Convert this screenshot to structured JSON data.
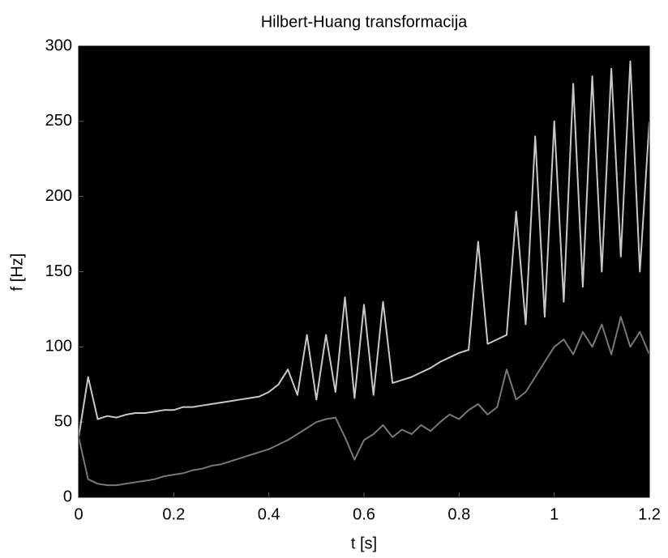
{
  "chart_data": {
    "type": "line",
    "title": "Hilbert-Huang transformacija",
    "x_label": "t [s]",
    "y_label": "f [Hz]",
    "x": [
      0,
      0.02,
      0.04,
      0.06,
      0.08,
      0.1,
      0.12,
      0.14,
      0.16,
      0.18,
      0.2,
      0.22,
      0.24,
      0.26,
      0.28,
      0.3,
      0.32,
      0.34,
      0.36,
      0.38,
      0.4,
      0.42,
      0.44,
      0.46,
      0.48,
      0.5,
      0.52,
      0.54,
      0.56,
      0.58,
      0.6,
      0.62,
      0.64,
      0.66,
      0.68,
      0.7,
      0.72,
      0.74,
      0.76,
      0.78,
      0.8,
      0.82,
      0.84,
      0.86,
      0.88,
      0.9,
      0.92,
      0.94,
      0.96,
      0.98,
      1.0,
      1.02,
      1.04,
      1.06,
      1.08,
      1.1,
      1.12,
      1.14,
      1.16,
      1.18,
      1.2
    ],
    "series": [
      {
        "color": "#c8c8c8",
        "values": [
          40,
          80,
          52,
          54,
          53,
          55,
          56,
          56,
          57,
          58,
          58,
          60,
          60,
          61,
          62,
          63,
          64,
          65,
          66,
          67,
          70,
          75,
          85,
          68,
          108,
          65,
          108,
          70,
          133,
          66,
          128,
          68,
          130,
          76,
          78,
          80,
          83,
          86,
          90,
          93,
          96,
          98,
          170,
          102,
          105,
          108,
          190,
          115,
          240,
          120,
          250,
          130,
          275,
          140,
          280,
          150,
          285,
          160,
          290,
          150,
          250
        ]
      },
      {
        "color": "#787878",
        "values": [
          40,
          12,
          9,
          8,
          8,
          9,
          10,
          11,
          12,
          14,
          15,
          16,
          18,
          19,
          21,
          22,
          24,
          26,
          28,
          30,
          32,
          35,
          38,
          42,
          46,
          50,
          52,
          53,
          40,
          25,
          38,
          42,
          48,
          40,
          45,
          42,
          48,
          44,
          50,
          55,
          52,
          58,
          62,
          55,
          60,
          85,
          65,
          70,
          80,
          90,
          100,
          105,
          95,
          110,
          100,
          115,
          95,
          120,
          100,
          110,
          95
        ]
      }
    ],
    "background": "#000000",
    "xlim": [
      0,
      1.2
    ],
    "xticks": [
      0,
      0.2,
      0.4,
      0.6,
      0.8,
      1,
      1.2
    ],
    "ylim": [
      0,
      300
    ],
    "yticks": [
      0,
      50,
      100,
      150,
      200,
      250,
      300
    ],
    "grid": false
  }
}
